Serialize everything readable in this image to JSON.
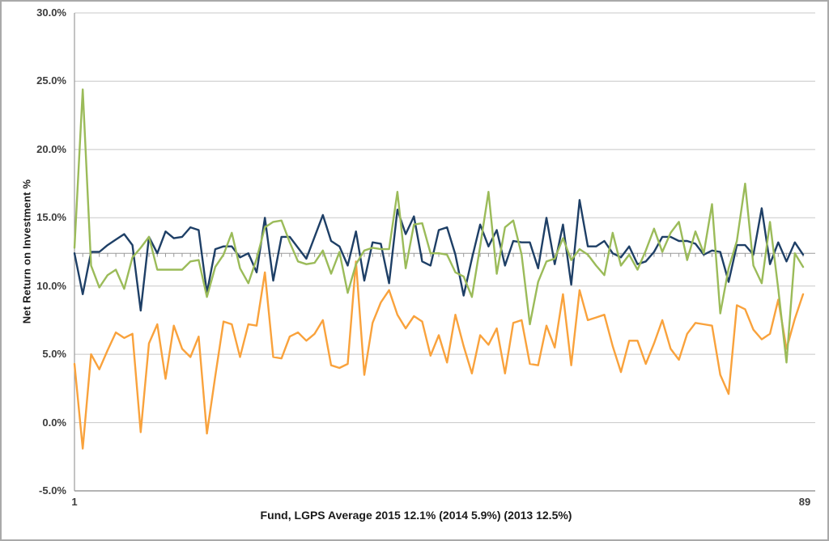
{
  "window": {
    "background": "#ffffff",
    "frame_border_color": "#a9a9a9"
  },
  "colors": {
    "gridline": "#c8c8c8",
    "axis_line": "#9b9b9b",
    "tick_mark": "#9b9b9b",
    "label_text": "#3c3c3c",
    "title_text": "#1a1a1a"
  },
  "chart_data": {
    "type": "line",
    "title": "",
    "xlabel": "Fund, LGPS Average 2015 12.1% (2014 5.9%) (2013 12.5%)",
    "ylabel": "Net Return on Investment %",
    "legend": "none",
    "grid": "horizontal",
    "x_range": [
      1,
      89
    ],
    "x_tick_labels": [
      "1",
      "89"
    ],
    "ylim": [
      -5,
      30
    ],
    "y_tick_values": [
      30,
      25,
      20,
      15,
      10,
      5,
      0,
      -5
    ],
    "y_tick_labels": [
      "30.0%",
      "25.0%",
      "20.0%",
      "15.0%",
      "10.0%",
      "5.0%",
      "0.0%",
      "-5.0%"
    ],
    "x_axis_crossing_value": 12.4,
    "category_tick_marks": true,
    "series": [
      {
        "name": "2015",
        "color": "#1e3f66",
        "values": [
          12.4,
          9.4,
          12.5,
          12.5,
          13.0,
          13.4,
          13.8,
          13.0,
          8.2,
          13.6,
          12.4,
          14.0,
          13.5,
          13.6,
          14.3,
          14.1,
          9.5,
          12.7,
          12.9,
          12.9,
          12.1,
          12.4,
          11.0,
          15.0,
          10.4,
          13.6,
          13.6,
          12.8,
          12.0,
          13.6,
          15.2,
          13.3,
          12.9,
          11.5,
          14.0,
          10.4,
          13.2,
          13.1,
          10.2,
          15.6,
          13.8,
          15.1,
          11.8,
          11.5,
          14.1,
          14.3,
          12.3,
          9.3,
          12.0,
          14.5,
          12.9,
          14.1,
          11.5,
          13.3,
          13.2,
          13.2,
          11.3,
          15.0,
          11.6,
          14.5,
          10.1,
          16.3,
          12.9,
          12.9,
          13.3,
          12.4,
          12.1,
          12.9,
          11.6,
          11.8,
          12.5,
          13.6,
          13.6,
          13.3,
          13.3,
          13.1,
          12.3,
          12.6,
          12.5,
          10.3,
          13.0,
          13.0,
          12.3,
          15.7,
          11.6,
          13.2,
          11.8,
          13.2,
          12.3
        ]
      },
      {
        "name": "2014",
        "color": "#f9a23c",
        "values": [
          4.3,
          -1.9,
          5.0,
          3.9,
          5.3,
          6.6,
          6.2,
          6.5,
          -0.7,
          5.8,
          7.2,
          3.2,
          7.1,
          5.4,
          4.8,
          6.3,
          -0.8,
          3.4,
          7.4,
          7.2,
          4.8,
          7.2,
          7.1,
          11.0,
          4.8,
          4.7,
          6.3,
          6.6,
          6.0,
          6.5,
          7.5,
          4.2,
          4.0,
          4.3,
          11.8,
          3.5,
          7.3,
          8.8,
          9.7,
          7.9,
          6.9,
          7.8,
          7.4,
          4.9,
          6.4,
          4.4,
          7.9,
          5.6,
          3.6,
          6.4,
          5.7,
          6.9,
          3.6,
          7.3,
          7.5,
          4.3,
          4.2,
          7.1,
          5.5,
          9.4,
          4.2,
          9.7,
          7.5,
          7.7,
          7.9,
          5.6,
          3.7,
          6.0,
          6.0,
          4.3,
          5.8,
          7.5,
          5.4,
          4.6,
          6.5,
          7.3,
          7.2,
          7.1,
          3.5,
          2.1,
          8.6,
          8.3,
          6.8,
          6.1,
          6.5,
          9.0,
          5.4,
          7.6,
          9.4
        ]
      },
      {
        "name": "2013",
        "color": "#9bbb59",
        "values": [
          12.8,
          24.4,
          11.5,
          9.9,
          10.8,
          11.2,
          9.8,
          12.1,
          12.8,
          13.6,
          11.2,
          11.2,
          11.2,
          11.2,
          11.8,
          11.9,
          9.2,
          11.4,
          12.3,
          13.9,
          11.3,
          10.2,
          12.0,
          14.3,
          14.7,
          14.8,
          13.2,
          11.8,
          11.6,
          11.7,
          12.6,
          10.9,
          12.5,
          9.5,
          11.6,
          12.6,
          12.8,
          12.7,
          12.7,
          16.9,
          11.3,
          14.5,
          14.6,
          12.4,
          12.4,
          12.3,
          11.0,
          10.7,
          9.2,
          12.9,
          16.9,
          10.9,
          14.3,
          14.8,
          12.3,
          7.2,
          10.3,
          11.8,
          12.0,
          13.5,
          11.9,
          12.7,
          12.3,
          11.5,
          10.8,
          13.9,
          11.5,
          12.3,
          11.2,
          12.6,
          14.2,
          12.5,
          13.9,
          14.7,
          11.9,
          14.0,
          12.4,
          16.0,
          8.0,
          11.3,
          13.3,
          17.5,
          11.5,
          10.2,
          14.7,
          9.8,
          4.4,
          12.4,
          11.4
        ]
      }
    ]
  }
}
